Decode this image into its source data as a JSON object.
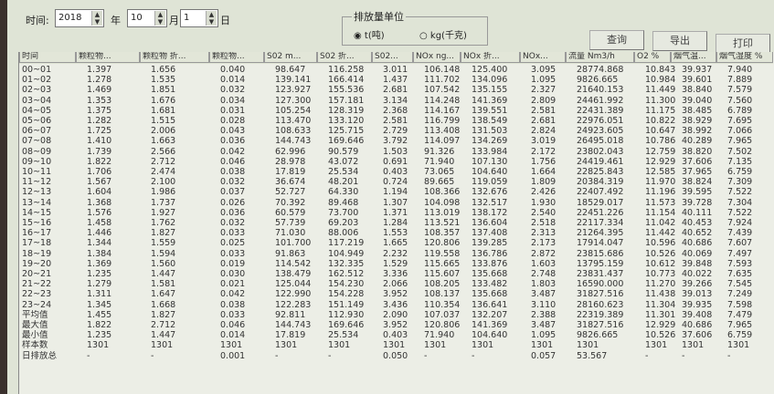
{
  "toolbar": {
    "time_label": "时间:",
    "year": "2018",
    "year_unit": "年",
    "month": "10",
    "month_unit": "月",
    "day": "1",
    "day_unit": "日",
    "unit_group_title": "排放量单位",
    "unit_options": [
      {
        "label": "t(吨)",
        "selected": true
      },
      {
        "label": "kg(千克)",
        "selected": false
      }
    ],
    "query_label": "查询",
    "export_label": "导出",
    "print_label": "打印"
  },
  "table": {
    "columns": [
      "时间",
      "颗粒物...",
      "颗粒物 折...",
      "颗粒物...",
      "S02 m...",
      "S02 折...",
      "S02...",
      "NOx ng...",
      "NOx 折...",
      "NOx...",
      "流量 Nm3/h",
      "O2 %",
      "烟气温...",
      "烟气湿度 %"
    ],
    "rows": [
      [
        "00~01",
        "1.397",
        "1.656",
        "0.040",
        "98.647",
        "116.258",
        "3.011",
        "106.148",
        "125.400",
        "3.095",
        "28774.868",
        "10.843",
        "39.937",
        "7.940"
      ],
      [
        "01~02",
        "1.278",
        "1.535",
        "0.014",
        "139.141",
        "166.414",
        "1.437",
        "111.702",
        "134.096",
        "1.095",
        "9826.665",
        "10.984",
        "39.601",
        "7.889"
      ],
      [
        "02~03",
        "1.469",
        "1.851",
        "0.032",
        "123.927",
        "155.536",
        "2.681",
        "107.542",
        "135.155",
        "2.327",
        "21640.153",
        "11.449",
        "38.840",
        "7.579"
      ],
      [
        "03~04",
        "1.353",
        "1.676",
        "0.034",
        "127.300",
        "157.181",
        "3.134",
        "114.248",
        "141.369",
        "2.809",
        "24461.992",
        "11.300",
        "39.040",
        "7.560"
      ],
      [
        "04~05",
        "1.375",
        "1.681",
        "0.031",
        "105.254",
        "128.319",
        "2.368",
        "114.167",
        "139.551",
        "2.581",
        "22431.389",
        "11.175",
        "38.485",
        "6.789"
      ],
      [
        "05~06",
        "1.282",
        "1.515",
        "0.028",
        "113.470",
        "133.120",
        "2.581",
        "116.799",
        "138.549",
        "2.681",
        "22976.051",
        "10.822",
        "38.929",
        "7.695"
      ],
      [
        "06~07",
        "1.725",
        "2.006",
        "0.043",
        "108.633",
        "125.715",
        "2.729",
        "113.408",
        "131.503",
        "2.824",
        "24923.605",
        "10.647",
        "38.992",
        "7.066"
      ],
      [
        "07~08",
        "1.410",
        "1.663",
        "0.036",
        "144.743",
        "169.646",
        "3.792",
        "114.097",
        "134.269",
        "3.019",
        "26495.018",
        "10.786",
        "40.289",
        "7.965"
      ],
      [
        "08~09",
        "1.739",
        "2.566",
        "0.042",
        "62.996",
        "90.579",
        "1.503",
        "91.326",
        "133.984",
        "2.172",
        "23802.043",
        "12.759",
        "38.820",
        "7.502"
      ],
      [
        "09~10",
        "1.822",
        "2.712",
        "0.046",
        "28.978",
        "43.072",
        "0.691",
        "71.940",
        "107.130",
        "1.756",
        "24419.461",
        "12.929",
        "37.606",
        "7.135"
      ],
      [
        "10~11",
        "1.706",
        "2.474",
        "0.038",
        "17.819",
        "25.534",
        "0.403",
        "73.065",
        "104.640",
        "1.664",
        "22825.843",
        "12.585",
        "37.965",
        "6.759"
      ],
      [
        "11~12",
        "1.567",
        "2.100",
        "0.032",
        "36.674",
        "48.201",
        "0.724",
        "89.665",
        "119.059",
        "1.809",
        "20384.319",
        "11.970",
        "38.824",
        "7.309"
      ],
      [
        "12~13",
        "1.604",
        "1.986",
        "0.037",
        "52.727",
        "64.330",
        "1.194",
        "108.366",
        "132.676",
        "2.426",
        "22407.492",
        "11.196",
        "39.595",
        "7.522"
      ],
      [
        "13~14",
        "1.368",
        "1.737",
        "0.026",
        "70.392",
        "89.468",
        "1.307",
        "104.098",
        "132.517",
        "1.930",
        "18529.017",
        "11.573",
        "39.728",
        "7.304"
      ],
      [
        "14~15",
        "1.576",
        "1.927",
        "0.036",
        "60.579",
        "73.700",
        "1.371",
        "113.019",
        "138.172",
        "2.540",
        "22451.226",
        "11.154",
        "40.111",
        "7.522"
      ],
      [
        "15~16",
        "1.458",
        "1.762",
        "0.032",
        "57.739",
        "69.203",
        "1.284",
        "113.521",
        "136.604",
        "2.518",
        "22117.334",
        "11.042",
        "40.453",
        "7.924"
      ],
      [
        "16~17",
        "1.446",
        "1.827",
        "0.033",
        "71.030",
        "88.006",
        "1.553",
        "108.357",
        "137.408",
        "2.313",
        "21264.395",
        "11.442",
        "40.652",
        "7.439"
      ],
      [
        "17~18",
        "1.344",
        "1.559",
        "0.025",
        "101.700",
        "117.219",
        "1.665",
        "120.806",
        "139.285",
        "2.173",
        "17914.047",
        "10.596",
        "40.686",
        "7.607"
      ],
      [
        "18~19",
        "1.384",
        "1.594",
        "0.033",
        "91.863",
        "104.949",
        "2.232",
        "119.558",
        "136.786",
        "2.872",
        "23815.686",
        "10.526",
        "40.069",
        "7.497"
      ],
      [
        "19~20",
        "1.369",
        "1.560",
        "0.019",
        "114.542",
        "132.335",
        "1.529",
        "115.665",
        "133.876",
        "1.603",
        "13795.159",
        "10.612",
        "39.848",
        "7.593"
      ],
      [
        "20~21",
        "1.235",
        "1.447",
        "0.030",
        "138.479",
        "162.512",
        "3.336",
        "115.607",
        "135.668",
        "2.748",
        "23831.437",
        "10.773",
        "40.022",
        "7.635"
      ],
      [
        "21~22",
        "1.279",
        "1.581",
        "0.021",
        "125.044",
        "154.230",
        "2.066",
        "108.205",
        "133.482",
        "1.803",
        "16590.000",
        "11.270",
        "39.266",
        "7.545"
      ],
      [
        "22~23",
        "1.311",
        "1.647",
        "0.042",
        "122.990",
        "154.228",
        "3.952",
        "108.137",
        "135.668",
        "3.487",
        "31827.516",
        "11.438",
        "39.013",
        "7.249"
      ],
      [
        "23~24",
        "1.345",
        "1.668",
        "0.038",
        "122.283",
        "151.149",
        "3.436",
        "110.354",
        "136.641",
        "3.110",
        "28160.623",
        "11.304",
        "39.935",
        "7.598"
      ],
      [
        "平均值",
        "1.455",
        "1.827",
        "0.033",
        "92.811",
        "112.930",
        "2.090",
        "107.037",
        "132.207",
        "2.388",
        "22319.389",
        "11.301",
        "39.408",
        "7.479"
      ],
      [
        "最大值",
        "1.822",
        "2.712",
        "0.046",
        "144.743",
        "169.646",
        "3.952",
        "120.806",
        "141.369",
        "3.487",
        "31827.516",
        "12.929",
        "40.686",
        "7.965"
      ],
      [
        "最小值",
        "1.235",
        "1.447",
        "0.014",
        "17.819",
        "25.534",
        "0.403",
        "71.940",
        "104.640",
        "1.095",
        "9826.665",
        "10.526",
        "37.606",
        "6.759"
      ],
      [
        "样本数",
        "1301",
        "1301",
        "1301",
        "1301",
        "1301",
        "1301",
        "1301",
        "1301",
        "1301",
        "1301",
        "1301",
        "1301",
        "1301"
      ],
      [
        "日排放总",
        "-",
        "-",
        "0.001",
        "-",
        "-",
        "0.050",
        "-",
        "-",
        "0.057",
        "53.567",
        "-",
        "-",
        "-"
      ]
    ]
  }
}
